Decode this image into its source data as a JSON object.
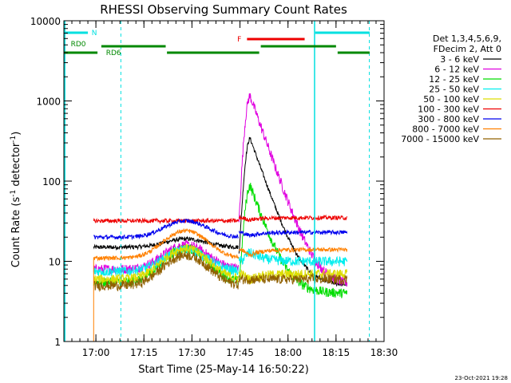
{
  "chart_data": {
    "type": "line",
    "title": "RHESSI Observing Summary Count Rates",
    "xlabel": "Start Time (25-May-14 16:50:22)",
    "ylabel": "Count Rate (s⁻¹ detector⁻¹)",
    "ylabel_main": "Count Rate (s",
    "ylabel_sup1": "-1",
    "ylabel_mid": " detector",
    "ylabel_sup2": "-1",
    "ylabel_end": ")",
    "yscale": "log",
    "ylim": [
      1,
      10000
    ],
    "xlim_min": [
      0,
      100
    ],
    "x_ticks": [
      {
        "min": 10,
        "label": "17:00"
      },
      {
        "min": 25,
        "label": "17:15"
      },
      {
        "min": 40,
        "label": "17:30"
      },
      {
        "min": 55,
        "label": "17:45"
      },
      {
        "min": 70,
        "label": "18:00"
      },
      {
        "min": 85,
        "label": "18:15"
      },
      {
        "min": 100,
        "label": "18:30"
      }
    ],
    "y_ticks": [
      {
        "value": 1,
        "label": "1"
      },
      {
        "value": 10,
        "label": "10"
      },
      {
        "value": 100,
        "label": "100"
      },
      {
        "value": 1000,
        "label": "1000"
      },
      {
        "value": 10000,
        "label": "10000"
      }
    ],
    "legend": {
      "placement": "right",
      "header": [
        "Det 1,3,4,5,6,9,",
        "FDecim 2, Att 0"
      ]
    },
    "series": [
      {
        "name": "3 - 6 keV",
        "color": "#000000",
        "base": 15,
        "bump": 4,
        "flare": 340,
        "offset": 5
      },
      {
        "name": "6 - 12 keV",
        "color": "#e000e0",
        "base": 8,
        "bump": 8,
        "flare": 1150,
        "offset": 5
      },
      {
        "name": "12 - 25 keV",
        "color": "#00dd00",
        "base": 5.5,
        "bump": 9,
        "flare": 88,
        "offset": 4
      },
      {
        "name": "25 - 50 keV",
        "color": "#00eeee",
        "base": 7.5,
        "bump": 6.5,
        "flare": 13,
        "offset": 10
      },
      {
        "name": "50 - 100 keV",
        "color": "#dddd00",
        "base": 6,
        "bump": 8.5,
        "flare": 6,
        "offset": 7
      },
      {
        "name": "100 - 300 keV",
        "color": "#ee0000",
        "base": 32,
        "bump": 0,
        "flare": 33,
        "offset": 35
      },
      {
        "name": "300 - 800 keV",
        "color": "#0000ee",
        "base": 20,
        "bump": 12,
        "flare": 21,
        "offset": 23
      },
      {
        "name": "800 - 7000 keV",
        "color": "#ff8000",
        "base": 11,
        "bump": 13,
        "flare": 12,
        "offset": 14
      },
      {
        "name": "7000 - 15000 keV",
        "color": "#906000",
        "base": 5,
        "bump": 7,
        "flare": 6,
        "offset": 6
      }
    ],
    "annotations": {
      "night_label": "N",
      "flare_label": "F",
      "rd0_label": "RD0",
      "rd6_label": "RD6"
    },
    "timestamp": "23-Oct-2021 19:28"
  }
}
